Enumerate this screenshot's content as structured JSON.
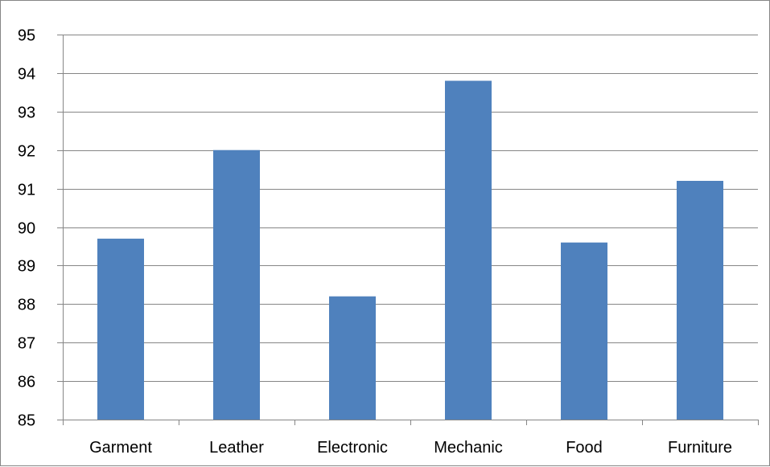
{
  "chart_data": {
    "type": "bar",
    "title": "",
    "xlabel": "",
    "ylabel": "",
    "categories": [
      "Garment",
      "Leather",
      "Electronic",
      "Mechanic",
      "Food",
      "Furniture"
    ],
    "values": [
      89.7,
      92.0,
      88.2,
      93.8,
      89.6,
      91.2
    ],
    "ylim": [
      85,
      95
    ],
    "yticks": [
      "85",
      "86",
      "87",
      "88",
      "89",
      "90",
      "91",
      "92",
      "93",
      "94",
      "95"
    ],
    "grid": true,
    "legend": "none",
    "colors": {
      "bar": "#4F81BD",
      "grid": "#868686",
      "axis": "#868686"
    }
  }
}
